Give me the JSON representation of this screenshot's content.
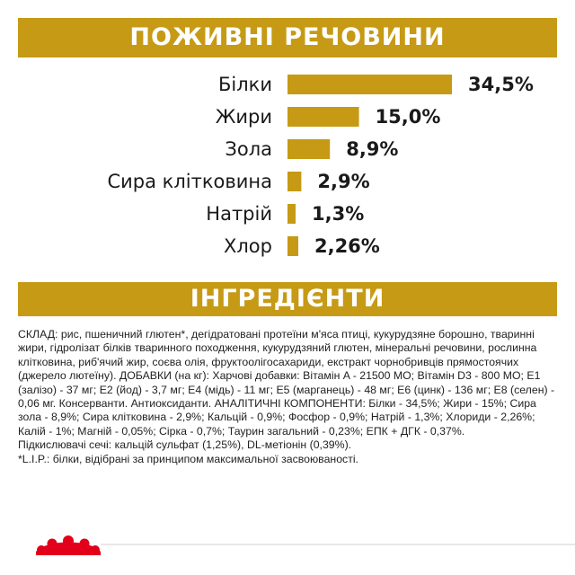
{
  "header": {
    "nutrients_title": "ПОЖИВНІ РЕЧОВИНИ",
    "ingredients_title": "ІНГРЕДІЄНТИ"
  },
  "chart_data": {
    "type": "bar",
    "orientation": "horizontal",
    "title": "ПОЖИВНІ РЕЧОВИНИ",
    "categories": [
      "Білки",
      "Жири",
      "Зола",
      "Сира клітковина",
      "Натрій",
      "Хлор"
    ],
    "values": [
      34.5,
      15.0,
      8.9,
      2.9,
      1.3,
      2.26
    ],
    "value_labels": [
      "34,5%",
      "15,0%",
      "8,9%",
      "2,9%",
      "1,3%",
      "2,26%"
    ],
    "unit": "%",
    "bar_color": "#c69a14",
    "grid": false,
    "legend": "none"
  },
  "ingredients": {
    "composition": "СКЛАД: рис, пшеничний глютен*, дегідратовані протеїни м'яса птиці, кукурудзяне борошно, тваринні жири, гідролізат білків тваринного походження, кукурудзяний глютен, мінеральні речовини, рослинна клітковина, риб'ячий жир, соєва олія, фруктоолігосахариди, екстракт чорнобривців прямостоячих (джерело лютеїну). ДОБАВКИ (на кг): Харчові добавки: Вітамін A - 21500 МО; Вітамін D3 - 800 МО; E1 (залізо) - 37 мг; E2 (йод) - 3,7 мг; E4 (мідь) - 11 мг; E5 (марганець) - 48 мг; E6 (цинк) - 136 мг; E8 (селен) - 0,06 мг. Консерванти. Антиоксиданти. АНАЛІТИЧНІ КОМПОНЕНТИ: Білки - 34,5%; Жири - 15%; Сира зола - 8,9%; Сира клітковина - 2,9%; Кальцій - 0,9%; Фосфор - 0,9%; Натрій - 1,3%; Хлориди - 2,26%; Калій - 1%; Магній - 0,05%; Сірка - 0,7%; Таурин загальний - 0,23%; ЕПК + ДГК - 0,37%.",
    "acidifiers": "Підкислювачі сечі: кальцій сульфат (1,25%), DL-метіонін (0,39%).",
    "footnote": "*L.I.P.: білки, відібрані за принципом максимальної засвоюваності."
  },
  "footer": {
    "brand_icon": "royal-canin-crown-icon",
    "brand_color": "#e2001a"
  }
}
